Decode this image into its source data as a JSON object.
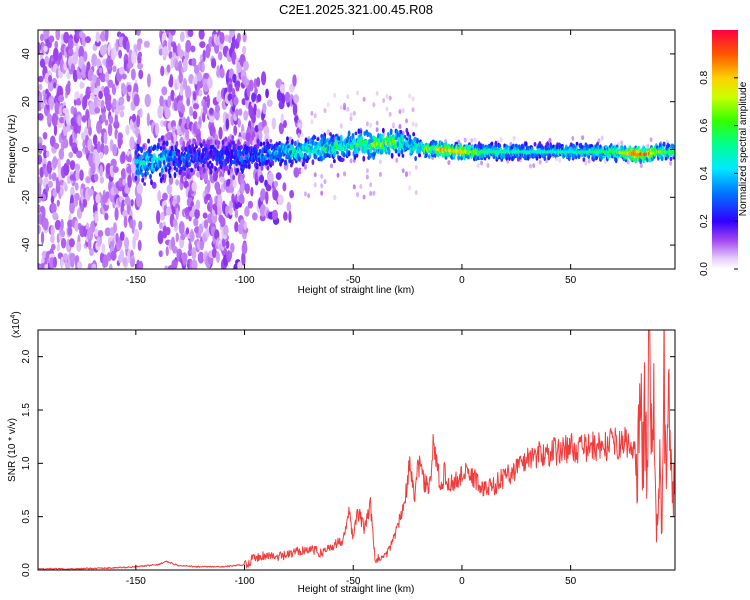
{
  "figure_title": "C2E1.2025.321.00.45.R08",
  "colors": {
    "snr_line": "#f23c3c",
    "axis": "#000000",
    "spectrum_main": "#7a1fe6",
    "spectrum_faint": "#cfa9f5"
  },
  "chart_data": [
    {
      "type": "heatmap",
      "title": "C2E1.2025.321.00.45.R08",
      "xlabel": "Height of straight line (km)",
      "ylabel": "Frequency (Hz)",
      "xlim": [
        -195,
        98
      ],
      "ylim": [
        -50,
        50
      ],
      "xticks": [
        -150,
        -100,
        -50,
        0,
        50
      ],
      "yticks": [
        -40,
        -20,
        0,
        20,
        40
      ],
      "colorbar": {
        "label": "Normalized spectral amplitude",
        "range": [
          0,
          1
        ],
        "ticks": [
          0.0,
          0.2,
          0.4,
          0.6,
          0.8
        ],
        "tick_labels": [
          "0.0",
          "0.2",
          "0.4",
          "0.6",
          "0.8"
        ],
        "colormap": "rainbow: violet (low) to red (high)"
      },
      "trace": {
        "description": "dominant spectral line (frequency vs height)",
        "x": [
          -148,
          -140,
          -130,
          -120,
          -110,
          -100,
          -90,
          -80,
          -75,
          -70,
          -60,
          -50,
          -40,
          -35,
          -30,
          -25,
          -20,
          -15,
          -10,
          0,
          10,
          20,
          30,
          40,
          50,
          60,
          70,
          80,
          85,
          90,
          95
        ],
        "y": [
          -6,
          -4,
          -4,
          -3,
          -3,
          -3,
          -2,
          -1,
          -1,
          0,
          1,
          2,
          2,
          3,
          3,
          2,
          1,
          0,
          0,
          -1,
          -1,
          -1,
          -1,
          -1,
          -1,
          -1,
          -1,
          -2,
          -2,
          -1,
          -1
        ],
        "amplitude": [
          0.45,
          0.5,
          0.35,
          0.3,
          0.3,
          0.35,
          0.4,
          0.5,
          0.55,
          0.55,
          0.6,
          0.6,
          0.7,
          0.75,
          0.65,
          0.55,
          0.6,
          0.75,
          0.85,
          0.8,
          0.55,
          0.55,
          0.5,
          0.5,
          0.5,
          0.55,
          0.6,
          0.95,
          0.9,
          0.7,
          0.6
        ]
      }
    },
    {
      "type": "line",
      "title": "",
      "xlabel": "Height of straight line (km)",
      "ylabel": "SNR (10 * v/v)",
      "scale_label": "(x10",
      "scale_exponent": "4",
      "scale_close": ")",
      "xlim": [
        -195,
        98
      ],
      "ylim": [
        0,
        2.25
      ],
      "xticks": [
        -150,
        -100,
        -50,
        0,
        50
      ],
      "yticks": [
        0.0,
        0.5,
        1.0,
        1.5,
        2.0
      ],
      "ytick_labels": [
        "0.0",
        "0.5",
        "1.0",
        "1.5",
        "2.0"
      ],
      "series": [
        {
          "name": "SNR",
          "color": "#f23c3c",
          "x": [
            -195,
            -180,
            -160,
            -150,
            -140,
            -136,
            -130,
            -120,
            -110,
            -100,
            -95,
            -90,
            -85,
            -80,
            -75,
            -70,
            -65,
            -60,
            -55,
            -52,
            -50,
            -48,
            -45,
            -42,
            -40,
            -35,
            -30,
            -27,
            -25,
            -24,
            -22,
            -20,
            -18,
            -15,
            -13,
            -10,
            -8,
            -5,
            -2,
            0,
            5,
            10,
            15,
            20,
            25,
            30,
            35,
            40,
            45,
            50,
            55,
            60,
            65,
            68,
            70,
            72,
            75,
            78,
            80,
            82,
            84,
            85,
            86,
            87,
            88,
            89,
            90,
            91,
            92,
            93,
            94,
            95,
            96,
            97,
            98
          ],
          "y": [
            0.01,
            0.01,
            0.02,
            0.03,
            0.05,
            0.08,
            0.04,
            0.03,
            0.03,
            0.05,
            0.12,
            0.14,
            0.12,
            0.14,
            0.18,
            0.2,
            0.16,
            0.22,
            0.28,
            0.55,
            0.3,
            0.55,
            0.4,
            0.6,
            0.1,
            0.12,
            0.38,
            0.6,
            0.8,
            1.05,
            0.65,
            1.0,
            0.85,
            0.75,
            1.2,
            0.8,
            0.9,
            0.8,
            0.85,
            0.9,
            0.88,
            0.75,
            0.8,
            0.88,
            0.95,
            1.05,
            1.08,
            1.1,
            1.12,
            1.15,
            1.13,
            1.16,
            1.15,
            1.18,
            1.2,
            1.17,
            1.2,
            1.15,
            1.05,
            1.3,
            1.4,
            0.9,
            2.2,
            1.0,
            1.6,
            0.6,
            0.3,
            1.0,
            0.4,
            1.9,
            0.9,
            1.5,
            1.1,
            0.7,
            1.3
          ]
        }
      ]
    }
  ]
}
